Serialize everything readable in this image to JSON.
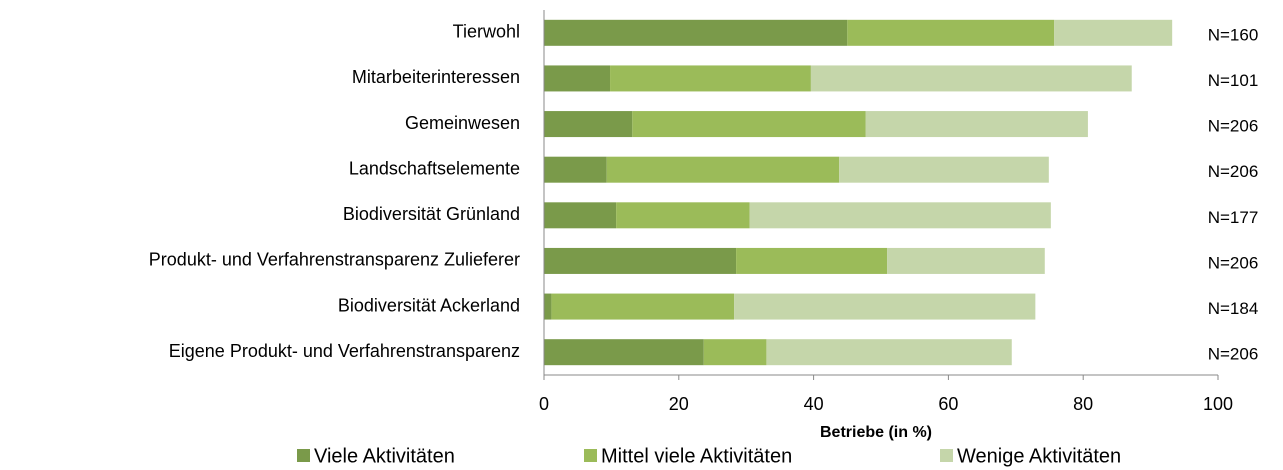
{
  "chart_data": {
    "type": "stacked-barh",
    "categories": [
      "Tierwohl",
      "Mitarbeiterinteressen",
      "Gemeinwesen",
      "Landschaftselemente",
      "Biodiversität Grünland",
      "Produkt- und Verfahrenstransparenz Zulieferer",
      "Biodiversität Ackerland",
      "Eigene Produkt- und Verfahrenstransparenz"
    ],
    "series": [
      {
        "name": "Viele Aktivitäten",
        "color": "#7a9a4a",
        "values": [
          45,
          9.8,
          13.1,
          9.3,
          10.7,
          28.5,
          1.1,
          23.7
        ]
      },
      {
        "name": "Mittel viele Aktivitäten",
        "color": "#9bbb59",
        "values": [
          30.7,
          29.8,
          34.6,
          34.5,
          19.8,
          22.4,
          27.1,
          9.3
        ]
      },
      {
        "name": "Wenige Aktivitäten",
        "color": "#c5d6aa",
        "values": [
          17.5,
          47.6,
          33,
          31.1,
          44.7,
          23.4,
          44.7,
          36.4
        ]
      }
    ],
    "annotations": [
      "N=160",
      "N=101",
      "N=206",
      "N=206",
      "N=177",
      "N=206",
      "N=184",
      "N=206"
    ],
    "x_label": "Betriebe (in %)",
    "xlim": [
      0,
      100
    ],
    "xticks": [
      0,
      20,
      40,
      60,
      80,
      100
    ],
    "legend": "bottom"
  }
}
